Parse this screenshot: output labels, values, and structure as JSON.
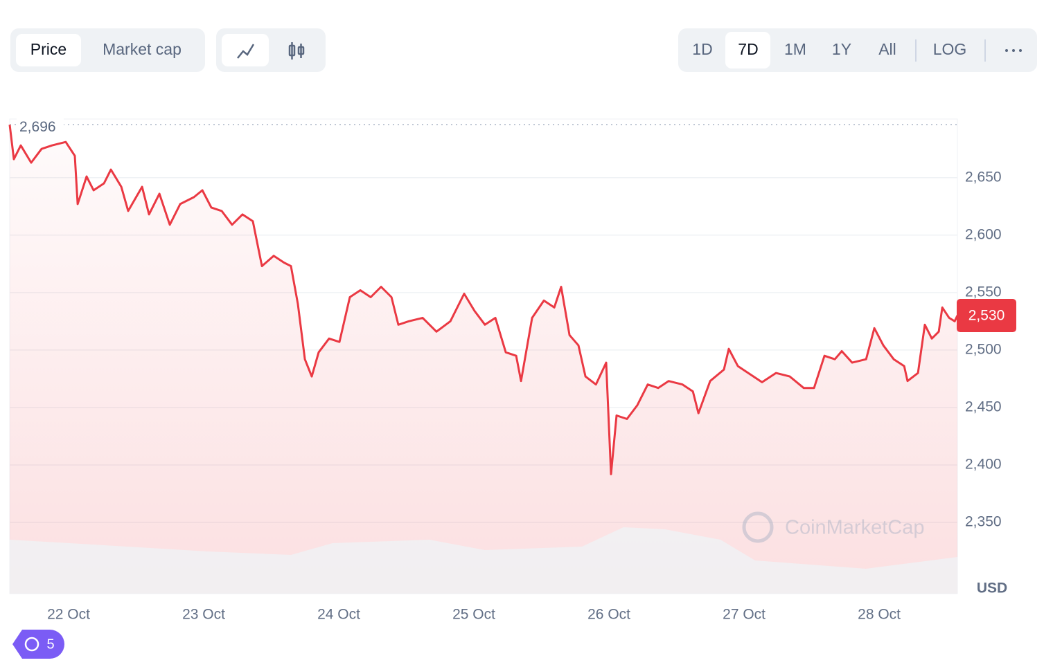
{
  "ui": {
    "view_tabs": [
      "Price",
      "Market cap"
    ],
    "ranges": [
      "1D",
      "7D",
      "1M",
      "1Y",
      "All"
    ],
    "log": "LOG",
    "history_count": 5,
    "watermark": "CoinMarketCap"
  },
  "chart_data": {
    "type": "line",
    "color": "#ea3943",
    "x": [
      21.564,
      21.595,
      21.646,
      21.723,
      21.8,
      21.877,
      21.979,
      22.046,
      22.067,
      22.133,
      22.185,
      22.262,
      22.313,
      22.39,
      22.441,
      22.544,
      22.595,
      22.672,
      22.749,
      22.826,
      22.928,
      22.99,
      23.056,
      23.133,
      23.21,
      23.287,
      23.364,
      23.431,
      23.518,
      23.595,
      23.646,
      23.697,
      23.749,
      23.8,
      23.851,
      23.928,
      24.005,
      24.082,
      24.159,
      24.236,
      24.313,
      24.39,
      24.441,
      24.518,
      24.621,
      24.723,
      24.826,
      24.928,
      25.005,
      25.082,
      25.159,
      25.236,
      25.313,
      25.349,
      25.431,
      25.518,
      25.595,
      25.646,
      25.708,
      25.774,
      25.826,
      25.903,
      25.979,
      26.015,
      26.056,
      26.133,
      26.21,
      26.287,
      26.364,
      26.441,
      26.544,
      26.621,
      26.662,
      26.749,
      26.851,
      26.887,
      26.954,
      27.031,
      27.133,
      27.236,
      27.338,
      27.441,
      27.518,
      27.595,
      27.672,
      27.723,
      27.8,
      27.903,
      27.964,
      28.031,
      28.108,
      28.185,
      28.21,
      28.287,
      28.338,
      28.39,
      28.441,
      28.467,
      28.518,
      28.559,
      28.579
    ],
    "values": [
      2696,
      2666,
      2678,
      2663,
      2675,
      2678,
      2681,
      2669,
      2627,
      2651,
      2639,
      2645,
      2657,
      2642,
      2621,
      2642,
      2618,
      2636,
      2609,
      2627,
      2633,
      2639,
      2624,
      2621,
      2609,
      2618,
      2612,
      2573,
      2582,
      2576,
      2573,
      2540,
      2492,
      2477,
      2498,
      2510,
      2507,
      2546,
      2552,
      2546,
      2555,
      2546,
      2522,
      2525,
      2528,
      2516,
      2525,
      2549,
      2534,
      2522,
      2528,
      2498,
      2495,
      2473,
      2528,
      2543,
      2537,
      2555,
      2513,
      2504,
      2477,
      2470,
      2489,
      2392,
      2443,
      2440,
      2452,
      2470,
      2467,
      2473,
      2470,
      2464,
      2445,
      2473,
      2483,
      2501,
      2486,
      2480,
      2472,
      2480,
      2477,
      2467,
      2467,
      2495,
      2492,
      2499,
      2489,
      2492,
      2519,
      2504,
      2492,
      2486,
      2473,
      2480,
      2522,
      2510,
      2516,
      2537,
      2528,
      2525,
      2530
    ],
    "xlim": [
      21.564,
      28.579
    ],
    "xticks": [
      {
        "value": 22,
        "label": "22 Oct"
      },
      {
        "value": 23,
        "label": "23 Oct"
      },
      {
        "value": 24,
        "label": "24 Oct"
      },
      {
        "value": 25,
        "label": "25 Oct"
      },
      {
        "value": 26,
        "label": "26 Oct"
      },
      {
        "value": 27,
        "label": "27 Oct"
      },
      {
        "value": 28,
        "label": "28 Oct"
      }
    ],
    "ylim": [
      2288,
      2701
    ],
    "yticks": [
      {
        "value": 2350,
        "label": "2,350"
      },
      {
        "value": 2400,
        "label": "2,400"
      },
      {
        "value": 2450,
        "label": "2,450"
      },
      {
        "value": 2500,
        "label": "2,500"
      },
      {
        "value": 2550,
        "label": "2,550"
      },
      {
        "value": 2600,
        "label": "2,600"
      },
      {
        "value": 2650,
        "label": "2,650"
      }
    ],
    "y_unit": "USD",
    "grid": true,
    "max_label": {
      "value": 2696,
      "label": "2,696"
    },
    "last_label": {
      "value": 2530,
      "label": "2,530"
    }
  }
}
